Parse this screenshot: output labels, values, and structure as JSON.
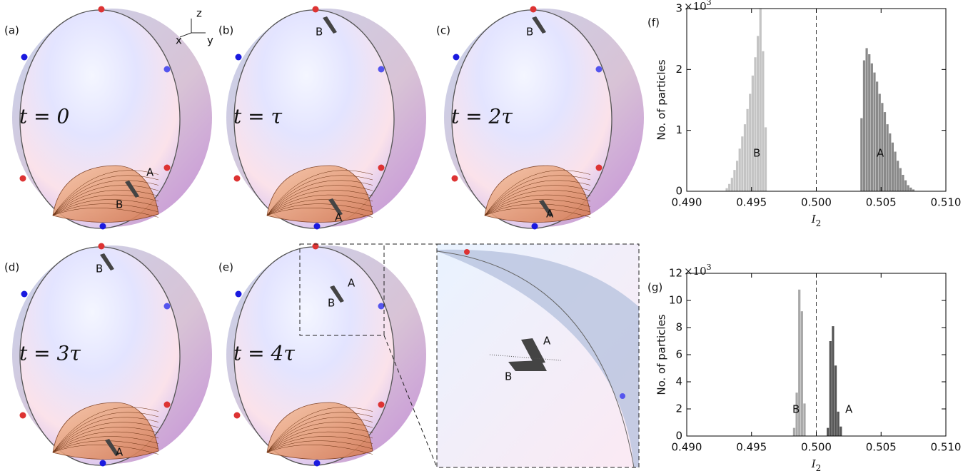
{
  "panels": [
    {
      "label": "(a)",
      "time": "t = 0",
      "markers": [
        "A",
        "B"
      ]
    },
    {
      "label": "(b)",
      "time": "t = τ",
      "markers": [
        "B",
        "A"
      ]
    },
    {
      "label": "(c)",
      "time": "t = 2τ",
      "markers": [
        "B",
        "A"
      ]
    },
    {
      "label": "(d)",
      "time": "t = 3τ",
      "markers": [
        "B",
        "A"
      ]
    },
    {
      "label": "(e)",
      "time": "t = 4τ",
      "markers": [
        "A",
        "B"
      ]
    }
  ],
  "axes_glyph": [
    "z",
    "x",
    "y"
  ],
  "inset_markers": [
    "A",
    "B"
  ],
  "chart_data": [
    {
      "type": "histogram",
      "panel_label": "(f)",
      "ylabel": "No. of particles",
      "xlabel": {
        "base": "I",
        "subscript": "2"
      },
      "y_multiplier": {
        "base": "×10",
        "exponent": "3"
      },
      "xlim": [
        0.49,
        0.51
      ],
      "ylim": [
        0,
        3
      ],
      "xticks": [
        {
          "value": 0.49,
          "label": "0.490"
        },
        {
          "value": 0.495,
          "label": "0.495"
        },
        {
          "value": 0.5,
          "label": "0.500"
        },
        {
          "value": 0.505,
          "label": "0.505"
        },
        {
          "value": 0.51,
          "label": "0.510"
        }
      ],
      "yticks": [
        0,
        1,
        2,
        3
      ],
      "reference_line": 0.5,
      "series": [
        {
          "name": "B",
          "color": "#c4c4c4",
          "bins": [
            0.493,
            0.4932,
            0.4934,
            0.4936,
            0.4938,
            0.494,
            0.4942,
            0.4944,
            0.4946,
            0.4948,
            0.495,
            0.4952,
            0.4954,
            0.4956,
            0.4958,
            0.496,
            0.4962
          ],
          "values": [
            0.05,
            0.12,
            0.22,
            0.35,
            0.5,
            0.7,
            0.9,
            1.1,
            1.35,
            1.6,
            1.9,
            2.2,
            2.55,
            3.0,
            2.3,
            1.05
          ]
        },
        {
          "name": "A",
          "color": "#8a8a8a",
          "bins": [
            0.5034,
            0.5036,
            0.5038,
            0.504,
            0.5042,
            0.5044,
            0.5046,
            0.5048,
            0.505,
            0.5052,
            0.5054,
            0.5056,
            0.5058,
            0.506,
            0.5062,
            0.5064,
            0.5066,
            0.5068,
            0.507,
            0.5072,
            0.5074,
            0.5076
          ],
          "values": [
            1.2,
            2.15,
            2.35,
            2.25,
            2.1,
            1.95,
            1.8,
            1.6,
            1.45,
            1.3,
            1.1,
            0.95,
            0.8,
            0.65,
            0.5,
            0.38,
            0.27,
            0.18,
            0.1,
            0.06,
            0.03
          ]
        }
      ]
    },
    {
      "type": "histogram",
      "panel_label": "(g)",
      "ylabel": "No. of particles",
      "xlabel": {
        "base": "I",
        "subscript": "2"
      },
      "y_multiplier": {
        "base": "×10",
        "exponent": "3"
      },
      "xlim": [
        0.49,
        0.51
      ],
      "ylim": [
        0,
        12
      ],
      "xticks": [
        {
          "value": 0.49,
          "label": "0.490"
        },
        {
          "value": 0.495,
          "label": "0.495"
        },
        {
          "value": 0.5,
          "label": "0.500"
        },
        {
          "value": 0.505,
          "label": "0.505"
        },
        {
          "value": 0.51,
          "label": "0.510"
        }
      ],
      "yticks": [
        0,
        2,
        4,
        6,
        8,
        10,
        12
      ],
      "reference_line": 0.5,
      "series": [
        {
          "name": "B",
          "color": "#a8a8a8",
          "bins": [
            0.4982,
            0.4984,
            0.4986,
            0.4988,
            0.499,
            0.4992
          ],
          "values": [
            0.6,
            3.2,
            10.8,
            9.2,
            2.4
          ]
        },
        {
          "name": "A",
          "color": "#555555",
          "bins": [
            0.5008,
            0.501,
            0.5012,
            0.5014,
            0.5016,
            0.5018,
            0.502
          ],
          "values": [
            0.6,
            7.0,
            8.1,
            5.2,
            1.8,
            0.7
          ]
        }
      ]
    }
  ]
}
